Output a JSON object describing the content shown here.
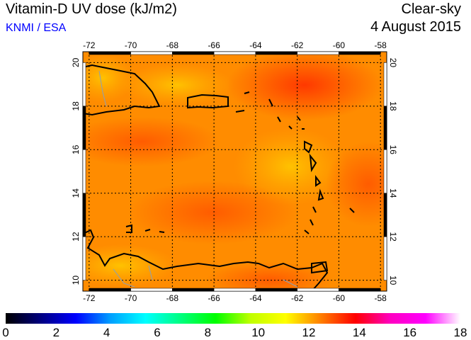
{
  "header": {
    "title": "Vitamin-D UV dose (kJ/m2)",
    "credit": "KNMI / ESA",
    "mode": "Clear-sky",
    "date": "4 August 2015"
  },
  "map": {
    "lon_ticks": [
      "-72",
      "-70",
      "-68",
      "-66",
      "-64",
      "-62",
      "-60",
      "-58"
    ],
    "lat_ticks": [
      "20",
      "18",
      "16",
      "14",
      "12",
      "10"
    ],
    "lon_range": [
      -72.3,
      -57.7
    ],
    "lat_range": [
      9.5,
      20.5
    ]
  },
  "colorbar": {
    "labels": [
      "0",
      "2",
      "4",
      "6",
      "8",
      "10",
      "12",
      "14",
      "16",
      "18"
    ],
    "range": [
      0,
      18
    ],
    "colors": [
      "#000000",
      "#000080",
      "#0000ff",
      "#00a0ff",
      "#00ffff",
      "#00ff80",
      "#00ff00",
      "#c0ff00",
      "#ffff00",
      "#ff8000",
      "#ff0000",
      "#ff00c0",
      "#ff00ff",
      "#ffffff"
    ]
  }
}
